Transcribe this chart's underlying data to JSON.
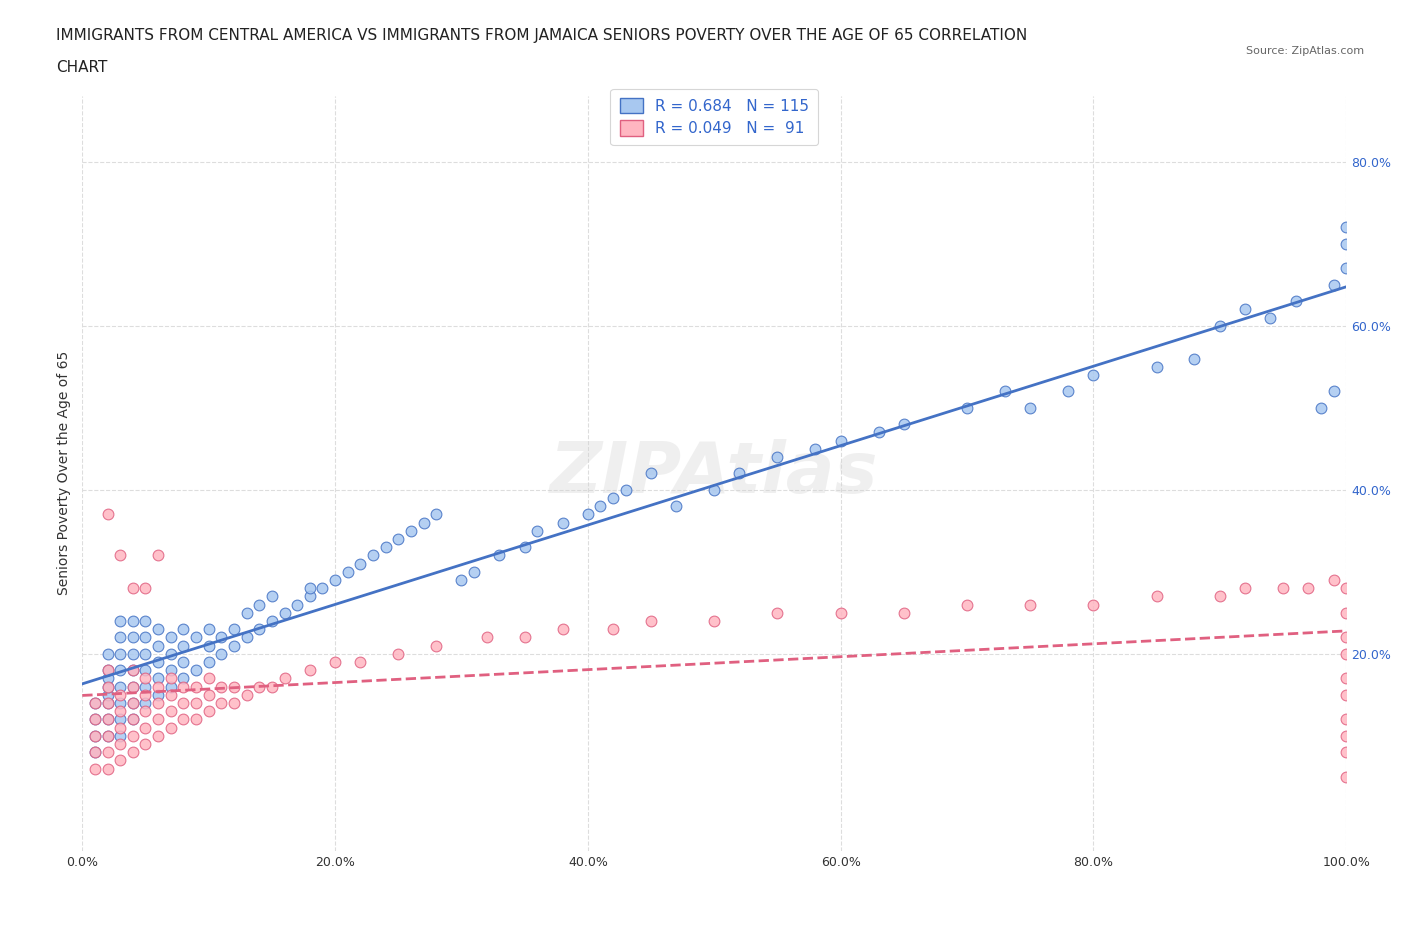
{
  "title_line1": "IMMIGRANTS FROM CENTRAL AMERICA VS IMMIGRANTS FROM JAMAICA SENIORS POVERTY OVER THE AGE OF 65 CORRELATION",
  "title_line2": "CHART",
  "source": "Source: ZipAtlas.com",
  "xlabel": "",
  "ylabel": "Seniors Poverty Over the Age of 65",
  "xlim": [
    0.0,
    1.0
  ],
  "ylim": [
    -0.05,
    0.95
  ],
  "xtick_labels": [
    "0.0%",
    "20.0%",
    "40.0%",
    "60.0%",
    "80.0%",
    "100.0%"
  ],
  "xtick_values": [
    0.0,
    0.2,
    0.4,
    0.6,
    0.8,
    1.0
  ],
  "ytick_labels": [
    "20.0%",
    "40.0%",
    "60.0%",
    "80.0%"
  ],
  "ytick_values": [
    0.2,
    0.4,
    0.6,
    0.8
  ],
  "series1_name": "Immigrants from Central America",
  "series1_R": 0.684,
  "series1_N": 115,
  "series1_color": "#a8c8f0",
  "series1_line_color": "#4472c4",
  "series2_name": "Immigrants from Jamaica",
  "series2_R": 0.049,
  "series2_N": 91,
  "series2_color": "#ffb6c1",
  "series2_line_color": "#e06080",
  "watermark": "ZIPAtlas",
  "background_color": "#ffffff",
  "grid_color": "#dddddd",
  "title_fontsize": 11,
  "axis_label_fontsize": 10,
  "tick_fontsize": 9,
  "legend_fontsize": 11,
  "series1_x": [
    0.01,
    0.01,
    0.01,
    0.01,
    0.02,
    0.02,
    0.02,
    0.02,
    0.02,
    0.02,
    0.02,
    0.02,
    0.03,
    0.03,
    0.03,
    0.03,
    0.03,
    0.03,
    0.03,
    0.03,
    0.04,
    0.04,
    0.04,
    0.04,
    0.04,
    0.04,
    0.04,
    0.05,
    0.05,
    0.05,
    0.05,
    0.05,
    0.05,
    0.06,
    0.06,
    0.06,
    0.06,
    0.06,
    0.07,
    0.07,
    0.07,
    0.07,
    0.08,
    0.08,
    0.08,
    0.08,
    0.09,
    0.09,
    0.1,
    0.1,
    0.1,
    0.11,
    0.11,
    0.12,
    0.12,
    0.13,
    0.13,
    0.14,
    0.14,
    0.15,
    0.15,
    0.16,
    0.17,
    0.18,
    0.18,
    0.19,
    0.2,
    0.21,
    0.22,
    0.23,
    0.24,
    0.25,
    0.26,
    0.27,
    0.28,
    0.3,
    0.31,
    0.33,
    0.35,
    0.36,
    0.38,
    0.4,
    0.41,
    0.42,
    0.43,
    0.45,
    0.47,
    0.5,
    0.52,
    0.55,
    0.58,
    0.6,
    0.63,
    0.65,
    0.7,
    0.73,
    0.75,
    0.78,
    0.8,
    0.85,
    0.88,
    0.9,
    0.92,
    0.94,
    0.96,
    0.98,
    0.99,
    0.99,
    1.0,
    1.0,
    1.0
  ],
  "series1_y": [
    0.08,
    0.1,
    0.12,
    0.14,
    0.1,
    0.12,
    0.14,
    0.15,
    0.16,
    0.17,
    0.18,
    0.2,
    0.1,
    0.12,
    0.14,
    0.16,
    0.18,
    0.2,
    0.22,
    0.24,
    0.12,
    0.14,
    0.16,
    0.18,
    0.2,
    0.22,
    0.24,
    0.14,
    0.16,
    0.18,
    0.2,
    0.22,
    0.24,
    0.15,
    0.17,
    0.19,
    0.21,
    0.23,
    0.16,
    0.18,
    0.2,
    0.22,
    0.17,
    0.19,
    0.21,
    0.23,
    0.18,
    0.22,
    0.19,
    0.21,
    0.23,
    0.2,
    0.22,
    0.21,
    0.23,
    0.22,
    0.25,
    0.23,
    0.26,
    0.24,
    0.27,
    0.25,
    0.26,
    0.27,
    0.28,
    0.28,
    0.29,
    0.3,
    0.31,
    0.32,
    0.33,
    0.34,
    0.35,
    0.36,
    0.37,
    0.29,
    0.3,
    0.32,
    0.33,
    0.35,
    0.36,
    0.37,
    0.38,
    0.39,
    0.4,
    0.42,
    0.38,
    0.4,
    0.42,
    0.44,
    0.45,
    0.46,
    0.47,
    0.48,
    0.5,
    0.52,
    0.5,
    0.52,
    0.54,
    0.55,
    0.56,
    0.6,
    0.62,
    0.61,
    0.63,
    0.5,
    0.52,
    0.65,
    0.67,
    0.7,
    0.72
  ],
  "series2_x": [
    0.01,
    0.01,
    0.01,
    0.01,
    0.01,
    0.02,
    0.02,
    0.02,
    0.02,
    0.02,
    0.02,
    0.02,
    0.02,
    0.03,
    0.03,
    0.03,
    0.03,
    0.03,
    0.03,
    0.04,
    0.04,
    0.04,
    0.04,
    0.04,
    0.04,
    0.04,
    0.05,
    0.05,
    0.05,
    0.05,
    0.05,
    0.05,
    0.06,
    0.06,
    0.06,
    0.06,
    0.06,
    0.07,
    0.07,
    0.07,
    0.07,
    0.08,
    0.08,
    0.08,
    0.09,
    0.09,
    0.09,
    0.1,
    0.1,
    0.1,
    0.11,
    0.11,
    0.12,
    0.12,
    0.13,
    0.14,
    0.15,
    0.16,
    0.18,
    0.2,
    0.22,
    0.25,
    0.28,
    0.32,
    0.35,
    0.38,
    0.42,
    0.45,
    0.5,
    0.55,
    0.6,
    0.65,
    0.7,
    0.75,
    0.8,
    0.85,
    0.9,
    0.92,
    0.95,
    0.97,
    0.99,
    1.0,
    1.0,
    1.0,
    1.0,
    1.0,
    1.0,
    1.0,
    1.0,
    1.0,
    1.0
  ],
  "series2_y": [
    0.06,
    0.08,
    0.1,
    0.12,
    0.14,
    0.06,
    0.08,
    0.1,
    0.12,
    0.14,
    0.16,
    0.18,
    0.37,
    0.07,
    0.09,
    0.11,
    0.13,
    0.15,
    0.32,
    0.08,
    0.1,
    0.12,
    0.14,
    0.16,
    0.18,
    0.28,
    0.09,
    0.11,
    0.13,
    0.15,
    0.17,
    0.28,
    0.1,
    0.12,
    0.14,
    0.16,
    0.32,
    0.11,
    0.13,
    0.15,
    0.17,
    0.12,
    0.14,
    0.16,
    0.12,
    0.14,
    0.16,
    0.13,
    0.15,
    0.17,
    0.14,
    0.16,
    0.14,
    0.16,
    0.15,
    0.16,
    0.16,
    0.17,
    0.18,
    0.19,
    0.19,
    0.2,
    0.21,
    0.22,
    0.22,
    0.23,
    0.23,
    0.24,
    0.24,
    0.25,
    0.25,
    0.25,
    0.26,
    0.26,
    0.26,
    0.27,
    0.27,
    0.28,
    0.28,
    0.28,
    0.29,
    0.05,
    0.08,
    0.1,
    0.12,
    0.15,
    0.17,
    0.2,
    0.22,
    0.25,
    0.28
  ]
}
